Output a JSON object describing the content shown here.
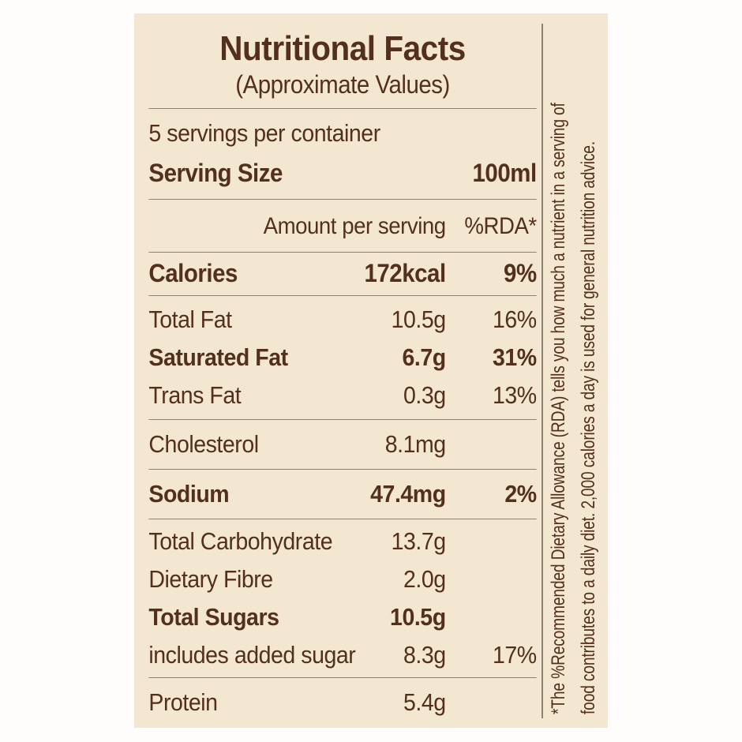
{
  "label": {
    "title": "Nutritional Facts",
    "subtitle": "(Approximate Values)",
    "servings_line": "5 servings per container",
    "serving_size": {
      "label": "Serving Size",
      "value": "100ml"
    },
    "columns": {
      "amount_header": "Amount per serving",
      "rda_header": "%RDA*"
    },
    "rows": [
      {
        "label": "Calories",
        "amount": "172kcal",
        "rda": "9%",
        "bold": true
      },
      {
        "label": "Total Fat",
        "amount": "10.5g",
        "rda": "16%",
        "bold": false
      },
      {
        "label": "Saturated Fat",
        "amount": "6.7g",
        "rda": "31%",
        "bold": true
      },
      {
        "label": "Trans Fat",
        "amount": "0.3g",
        "rda": "13%",
        "bold": false
      },
      {
        "label": "Cholesterol",
        "amount": "8.1mg",
        "rda": "",
        "bold": false
      },
      {
        "label": "Sodium",
        "amount": "47.4mg",
        "rda": "2%",
        "bold": true
      },
      {
        "label": "Total Carbohydrate",
        "amount": "13.7g",
        "rda": "",
        "bold": false
      },
      {
        "label": "Dietary Fibre",
        "amount": "2.0g",
        "rda": "",
        "bold": false
      },
      {
        "label": "Total Sugars",
        "amount": "10.5g",
        "rda": "",
        "bold": true
      },
      {
        "label": "includes added sugar",
        "amount": "8.3g",
        "rda": "17%",
        "bold": false
      },
      {
        "label": "Protein",
        "amount": "5.4g",
        "rda": "",
        "bold": false
      }
    ],
    "footnote": {
      "line1": "*The %Recommended Dietary Allowance (RDA) tells you how much a nutrient in a serving of",
      "line2": "food contributes to a daily diet. 2,000 calories a day is used for general nutrition advice."
    }
  },
  "colors": {
    "page_bg": "#fefdfb",
    "panel_bg": "#f3e7d1",
    "text": "#532f1e",
    "divider": "#8d8272"
  }
}
